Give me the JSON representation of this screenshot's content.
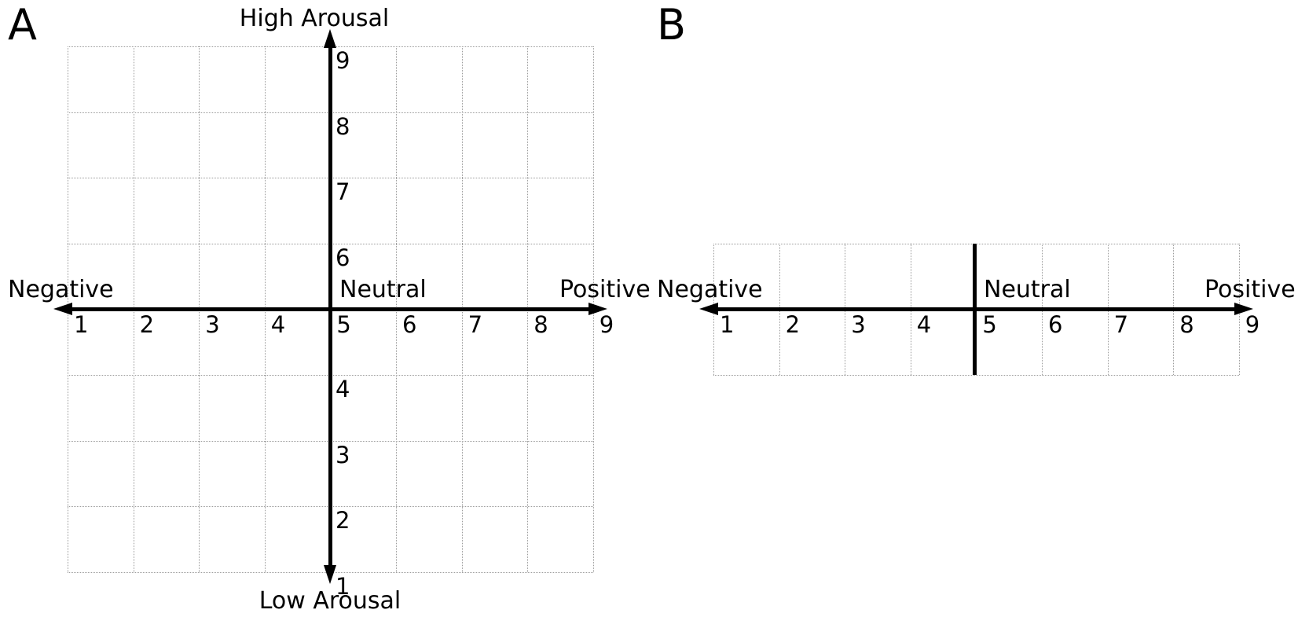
{
  "figure": {
    "background_color": "#ffffff",
    "text_color": "#000000",
    "axis_color": "#000000",
    "gridline_color": "#9c9c9c",
    "panel_a": {
      "letter": "A",
      "type": "two-dimensional rating grid",
      "top_label": "High Arousal",
      "bottom_label": "Low Arousal",
      "left_label": "Negative",
      "center_label": "Neutral",
      "right_label": "Positive",
      "x_tick_labels": [
        "1",
        "2",
        "3",
        "4",
        "5",
        "6",
        "7",
        "8",
        "9"
      ],
      "y_tick_labels_above_axis": [
        "9",
        "8",
        "7",
        "6"
      ],
      "y_tick_labels_below_axis": [
        "4",
        "3",
        "2",
        "1"
      ],
      "grid_columns": 8,
      "grid_rows": 8
    },
    "panel_b": {
      "letter": "B",
      "type": "one-dimensional rating scale",
      "left_label": "Negative",
      "center_label": "Neutral",
      "right_label": "Positive",
      "x_tick_labels": [
        "1",
        "2",
        "3",
        "4",
        "5",
        "6",
        "7",
        "8",
        "9"
      ],
      "grid_columns": 8,
      "grid_rows": 1
    }
  }
}
